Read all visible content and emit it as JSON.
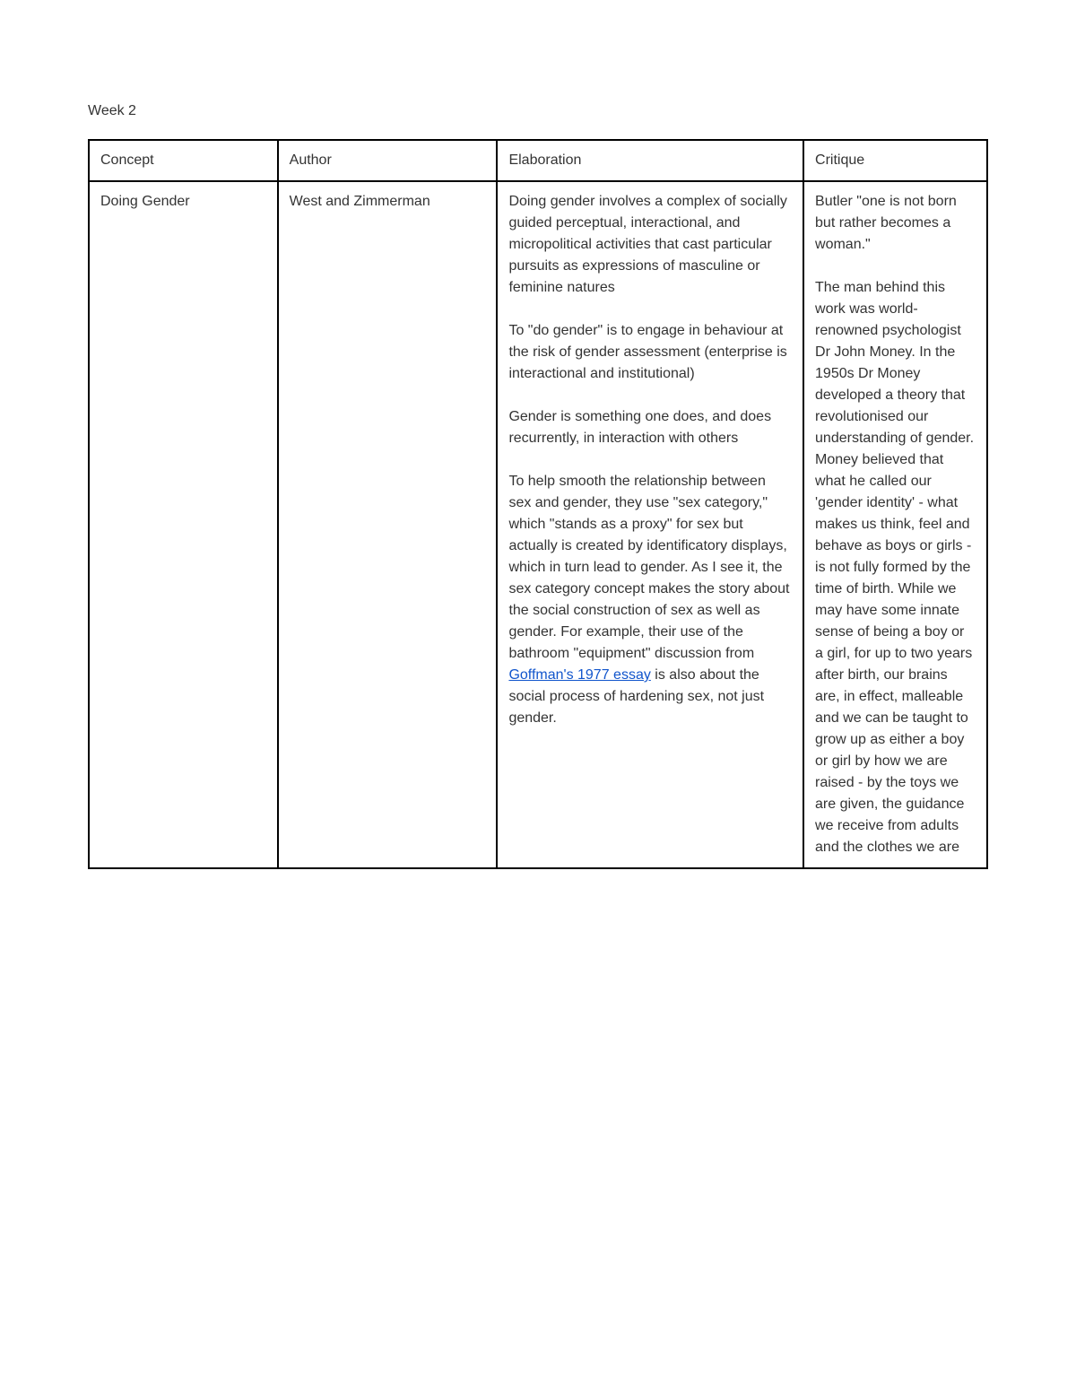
{
  "page": {
    "title": "Week 2"
  },
  "table": {
    "headers": {
      "concept": "Concept",
      "author": "Author",
      "elaboration": "Elaboration",
      "critique": "Critique"
    },
    "row": {
      "concept": "Doing Gender",
      "author": "West and Zimmerman",
      "elaboration": {
        "p1": "Doing gender involves a complex of socially guided perceptual, interactional, and micropolitical activities that cast particular pursuits as expressions of masculine or feminine natures",
        "p2": "To \"do gender\" is to engage in behaviour at the risk of gender assessment (enterprise is interactional and institutional)",
        "p3": "Gender is something one does, and does recurrently, in interaction with others",
        "p4_a": "To help smooth the relationship between sex and gender, they use \"sex category,\" which \"stands as a proxy\" for sex but actually is created by identificatory displays, which in turn lead to gender. As I see it, the sex category concept makes the story about the social construction of sex as well as gender. For example, their use of the bathroom \"equipment\" discussion from ",
        "p4_link": "Goffman's 1977 essay",
        "p4_b": " is also about the social process of hardening sex, not just gender."
      },
      "critique": {
        "p1": "Butler \"one is not born but rather becomes a woman.\"",
        "p2": "The man behind this work was world-renowned psychologist Dr John Money. In the 1950s Dr Money developed a theory that revolutionised our understanding of gender. Money believed that what he called our 'gender identity' - what makes us think, feel and behave as boys or girls - is not fully formed by the time of birth. While we may have some innate sense of being a boy or a girl, for up to two years after birth, our brains are, in effect, malleable and we can be taught to grow up as either a boy or girl by how we are raised - by the toys we are given, the guidance we receive from adults and the clothes we are"
      }
    }
  }
}
